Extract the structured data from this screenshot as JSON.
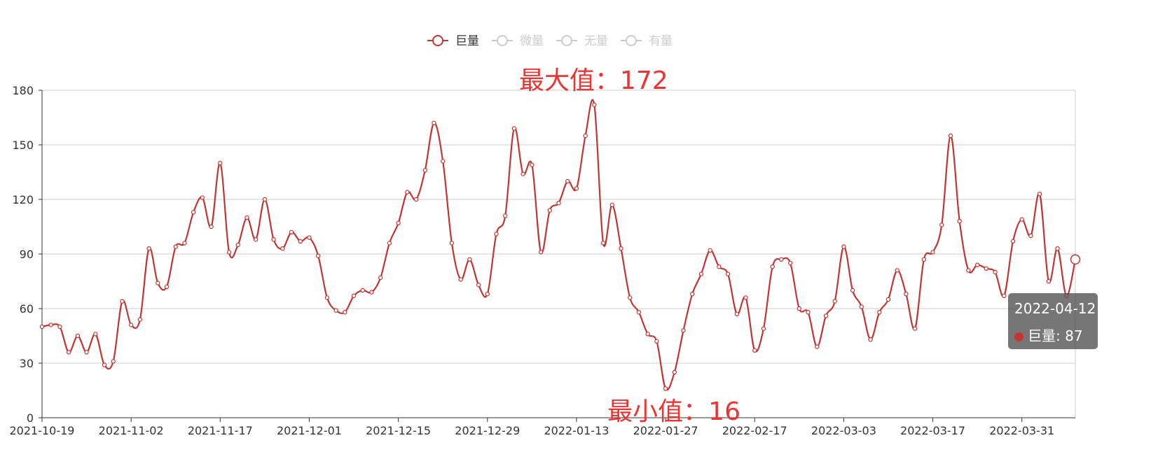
{
  "chart_data": {
    "type": "line",
    "title": "",
    "xlabel": "",
    "ylabel": "",
    "ylim": [
      0,
      180
    ],
    "y_ticks": [
      0,
      30,
      60,
      90,
      120,
      150,
      180
    ],
    "x_tick_labels": [
      "2021-10-19",
      "2021-11-02",
      "2021-11-17",
      "2021-12-01",
      "2021-12-15",
      "2021-12-29",
      "2022-01-13",
      "2022-01-27",
      "2022-02-17",
      "2022-03-03",
      "2022-03-17",
      "2022-03-31"
    ],
    "x_tick_index": [
      0,
      10,
      20,
      30,
      40,
      50,
      60,
      70,
      80,
      90,
      100,
      110
    ],
    "smooth": true,
    "grid": true,
    "legend_position": "top-center",
    "legend": [
      {
        "name": "巨量",
        "active": true
      },
      {
        "name": "微量",
        "active": false
      },
      {
        "name": "无量",
        "active": false
      },
      {
        "name": "有量",
        "active": false
      }
    ],
    "series": [
      {
        "name": "巨量",
        "color": "#c23531",
        "values": [
          50,
          51,
          50,
          36,
          45,
          36,
          46,
          29,
          31,
          64,
          51,
          54,
          93,
          74,
          72,
          94,
          96,
          113,
          121,
          105,
          140,
          91,
          95,
          110,
          98,
          120,
          98,
          93,
          102,
          97,
          99,
          89,
          66,
          59,
          58,
          67,
          70,
          69,
          77,
          96,
          107,
          124,
          120,
          136,
          162,
          141,
          96,
          76,
          87,
          73,
          68,
          101,
          111,
          159,
          134,
          139,
          91,
          114,
          118,
          130,
          126,
          155,
          172,
          96,
          117,
          93,
          66,
          58,
          46,
          42,
          16,
          25,
          48,
          68,
          79,
          92,
          83,
          79,
          57,
          66,
          37,
          49,
          83,
          87,
          85,
          60,
          58,
          39,
          56,
          64,
          94,
          70,
          61,
          43,
          58,
          65,
          81,
          68,
          49,
          87,
          91,
          106,
          155,
          108,
          81,
          84,
          82,
          80,
          67,
          97,
          109,
          100,
          123,
          75,
          93,
          67,
          87
        ]
      }
    ],
    "annotations": {
      "max_label": "最大值：172",
      "max_value": 172,
      "min_label": "最小值：16",
      "min_value": 16
    },
    "tooltip": {
      "date": "2022-04-12",
      "series_name": "巨量",
      "value": 87,
      "text": "巨量: 87"
    },
    "colors": {
      "series": "#c23531",
      "legend_inactive": "#cccccc",
      "grid": "#cccccc",
      "axis": "#333333",
      "annotation": "#ee3333"
    }
  }
}
